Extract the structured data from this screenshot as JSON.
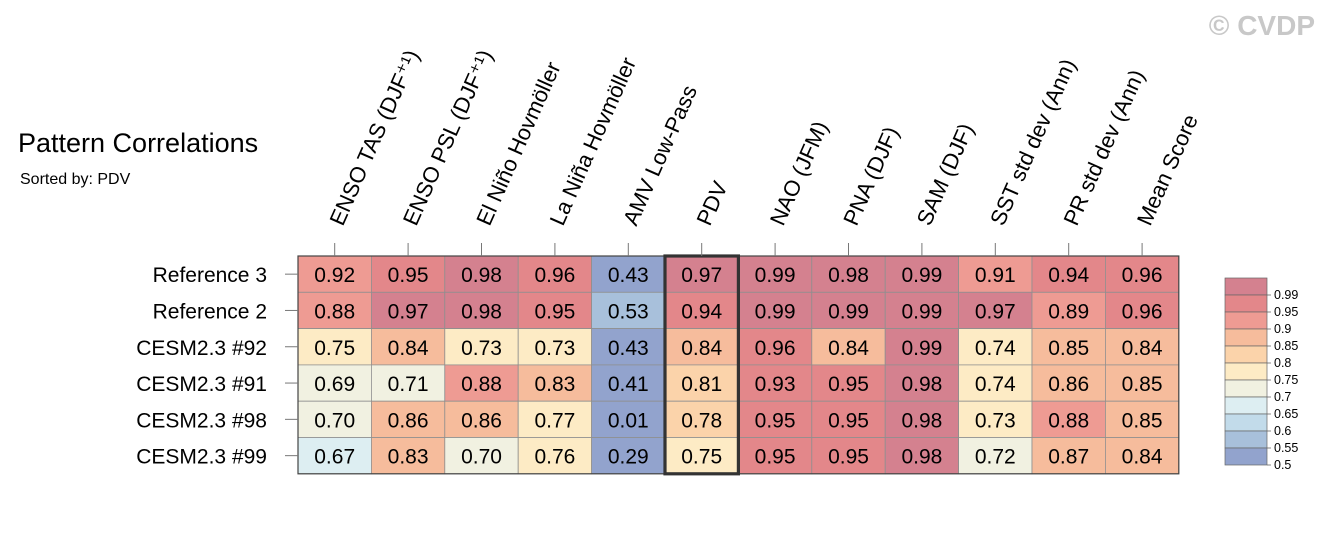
{
  "title": "Pattern Correlations",
  "subtitle": "Sorted by: PDV",
  "watermark": "© CVDP",
  "chart_data": {
    "type": "heatmap",
    "columns": [
      "ENSO TAS (DJF⁺¹)",
      "ENSO PSL (DJF⁺¹)",
      "El Niño Hovmöller",
      "La Niña Hovmöller",
      "AMV Low-Pass",
      "PDV",
      "NAO (JFM)",
      "PNA (DJF)",
      "SAM (DJF)",
      "SST std dev (Ann)",
      "PR std dev (Ann)",
      "Mean Score"
    ],
    "rows": [
      "Reference 3",
      "Reference 2",
      "CESM2.3 #92",
      "CESM2.3 #91",
      "CESM2.3 #98",
      "CESM2.3 #99"
    ],
    "values": [
      [
        "0.92",
        "0.95",
        "0.98",
        "0.96",
        "0.43",
        "0.97",
        "0.99",
        "0.98",
        "0.99",
        "0.91",
        "0.94",
        "0.96"
      ],
      [
        "0.88",
        "0.97",
        "0.98",
        "0.95",
        "0.53",
        "0.94",
        "0.99",
        "0.99",
        "0.99",
        "0.97",
        "0.89",
        "0.96"
      ],
      [
        "0.75",
        "0.84",
        "0.73",
        "0.73",
        "0.43",
        "0.84",
        "0.96",
        "0.84",
        "0.99",
        "0.74",
        "0.85",
        "0.84"
      ],
      [
        "0.69",
        "0.71",
        "0.88",
        "0.83",
        "0.41",
        "0.81",
        "0.93",
        "0.95",
        "0.98",
        "0.74",
        "0.86",
        "0.85"
      ],
      [
        "0.70",
        "0.86",
        "0.86",
        "0.77",
        "0.01",
        "0.78",
        "0.95",
        "0.95",
        "0.98",
        "0.73",
        "0.88",
        "0.85"
      ],
      [
        "0.67",
        "0.83",
        "0.70",
        "0.76",
        "0.29",
        "0.75",
        "0.95",
        "0.95",
        "0.98",
        "0.72",
        "0.87",
        "0.84"
      ]
    ],
    "sorted_by": "PDV",
    "highlighted_column": "PDV",
    "colorbar": {
      "labels": [
        "0.99",
        "0.95",
        "0.9",
        "0.85",
        "0.8",
        "0.75",
        "0.7",
        "0.65",
        "0.6",
        "0.55",
        "0.5"
      ],
      "colors_high_to_low": [
        "#d4818f",
        "#e3878a",
        "#ee9b93",
        "#f6bc9c",
        "#fbd3aa",
        "#fdebc5",
        "#f1f1e1",
        "#ddeef2",
        "#c2dbea",
        "#a8c0db",
        "#92a3cd"
      ]
    }
  }
}
